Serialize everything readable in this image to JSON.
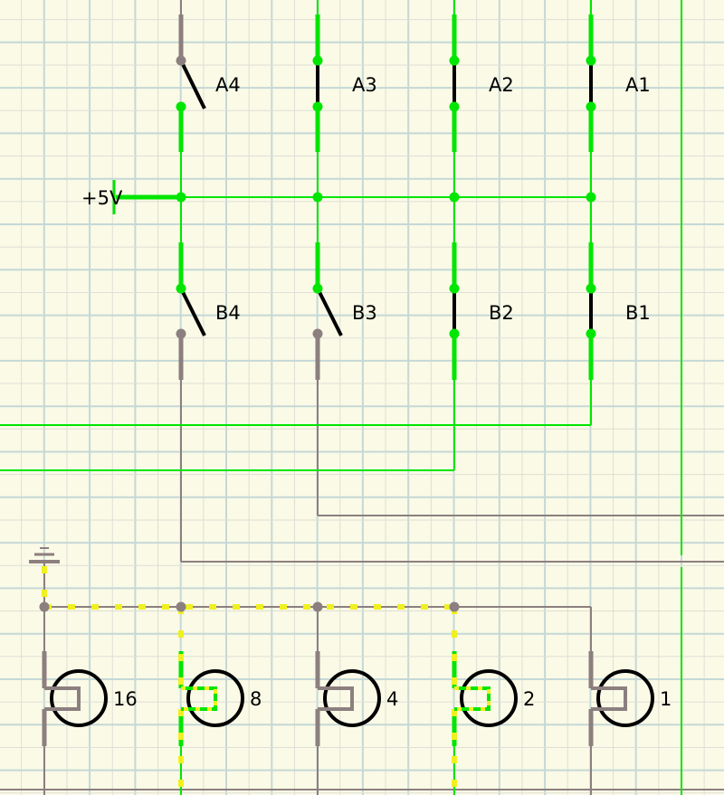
{
  "circuit": {
    "supply_label": "+5V",
    "switches_a": [
      {
        "label": "A4",
        "closed": false
      },
      {
        "label": "A3",
        "closed": true
      },
      {
        "label": "A2",
        "closed": true
      },
      {
        "label": "A1",
        "closed": true
      }
    ],
    "switches_b": [
      {
        "label": "B4",
        "closed": false
      },
      {
        "label": "B3",
        "closed": false
      },
      {
        "label": "B2",
        "closed": true
      },
      {
        "label": "B1",
        "closed": true
      }
    ],
    "lamps": [
      {
        "label": "16",
        "lit": false
      },
      {
        "label": "8",
        "lit": true
      },
      {
        "label": "4",
        "lit": false
      },
      {
        "label": "2",
        "lit": true
      },
      {
        "label": "1",
        "lit": false
      }
    ]
  },
  "colors": {
    "background": "#fafae6",
    "grid_minor": "#dedfd6",
    "grid_major": "#c5d8d6",
    "wire_active": "#00e600",
    "wire_inactive": "#8c7f7f",
    "current_dots": "#f0f020",
    "component": "#000000"
  }
}
